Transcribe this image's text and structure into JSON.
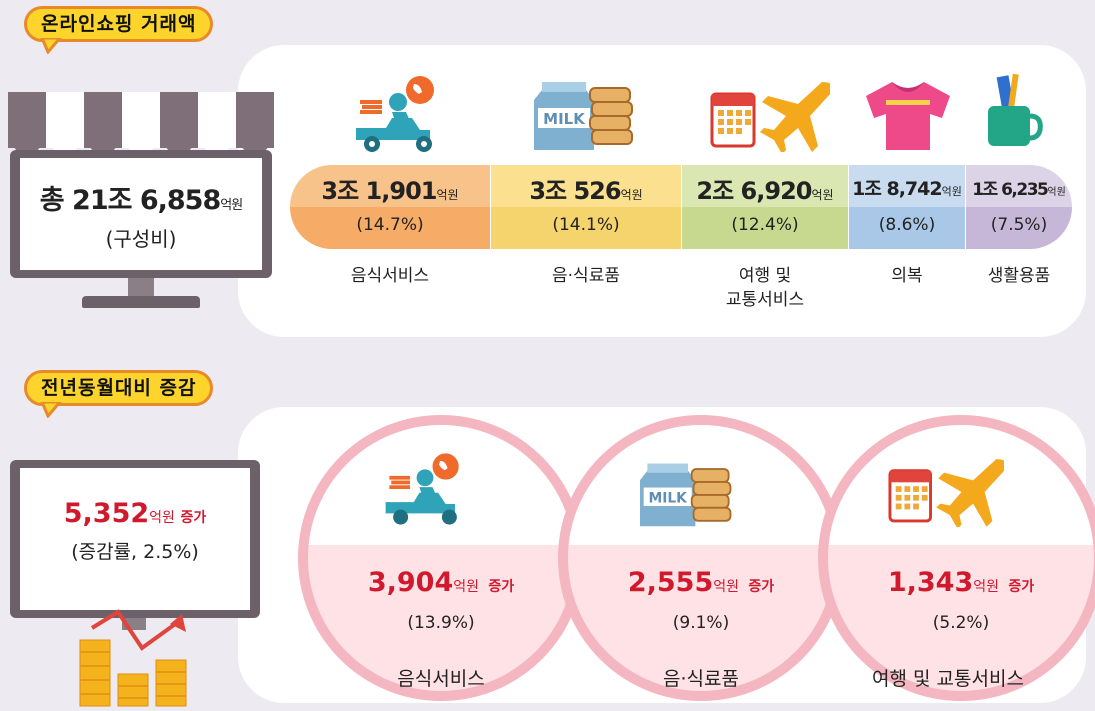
{
  "section1": {
    "tag": "온라인쇼핑 거래액",
    "total_amount": "총 21조 6,858",
    "total_unit": "억원",
    "total_sub": "(구성비)",
    "categories": [
      {
        "icon": "delivery-scooter-icon",
        "amount": "3조 1,901",
        "unit": "억원",
        "share": "(14.7%)",
        "label_lines": [
          "음식서비스"
        ]
      },
      {
        "icon": "milk-bread-icon",
        "amount": "3조 526",
        "unit": "억원",
        "share": "(14.1%)",
        "label_lines": [
          "음·식료품"
        ]
      },
      {
        "icon": "calendar-airplane-icon",
        "amount": "2조 6,920",
        "unit": "억원",
        "share": "(12.4%)",
        "label_lines": [
          "여행 및",
          "교통서비스"
        ]
      },
      {
        "icon": "tshirt-icon",
        "amount": "1조 8,742",
        "unit": "억원",
        "share": "(8.6%)",
        "label_lines": [
          "의복"
        ]
      },
      {
        "icon": "toothbrush-cup-icon",
        "amount": "1조 6,235",
        "unit": "억원",
        "share": "(7.5%)",
        "label_lines": [
          "생활용품"
        ]
      }
    ],
    "bar_colors": {
      "top": [
        "#f8c38a",
        "#fae08f",
        "#dbe7b2",
        "#c9dcef",
        "#ddd3e6"
      ],
      "bottom": [
        "#f6ab66",
        "#f5d36d",
        "#c6d98e",
        "#a9c8e8",
        "#c6b7d8"
      ]
    }
  },
  "section2": {
    "tag": "전년동월대비 증감",
    "total_amount": "5,352",
    "total_unit": "억원",
    "total_suffix": "증가",
    "total_sub": "(증감률, 2.5%)",
    "items": [
      {
        "icon": "delivery-scooter-icon",
        "amount": "3,904",
        "unit": "억원",
        "suffix": "증가",
        "rate": "(13.9%)",
        "label": "음식서비스"
      },
      {
        "icon": "milk-bread-icon",
        "amount": "2,555",
        "unit": "억원",
        "suffix": "증가",
        "rate": "(9.1%)",
        "label": "음·식료품"
      },
      {
        "icon": "calendar-airplane-icon",
        "amount": "1,343",
        "unit": "억원",
        "suffix": "증가",
        "rate": "(5.2%)",
        "label": "여행 및 교통서비스"
      }
    ]
  },
  "icon_labels": {
    "milk": "MILK"
  },
  "colors": {
    "background": "#eeeaf2",
    "accent_red": "#d0192d",
    "tag_fill": "#fcd42b",
    "tag_border": "#e8892a"
  }
}
